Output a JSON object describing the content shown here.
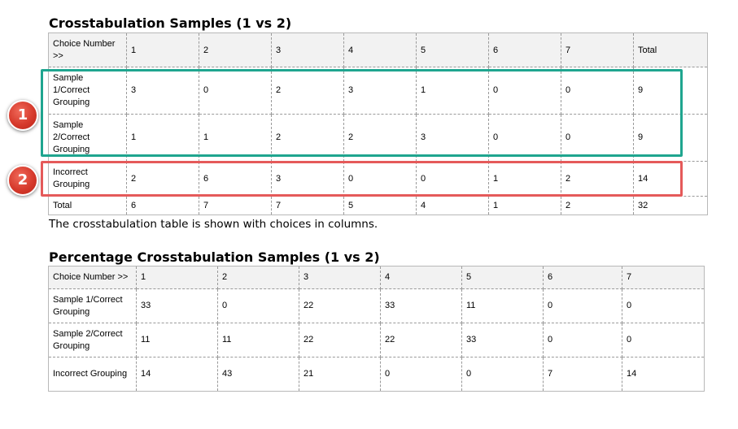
{
  "table1": {
    "title": "Crosstabulation Samples (1 vs 2)",
    "header": [
      "Choice Number >>",
      "1",
      "2",
      "3",
      "4",
      "5",
      "6",
      "7",
      "Total"
    ],
    "rows": [
      [
        "Sample 1/Correct Grouping",
        "3",
        "0",
        "2",
        "3",
        "1",
        "0",
        "0",
        "9"
      ],
      [
        "Sample 2/Correct Grouping",
        "1",
        "1",
        "2",
        "2",
        "3",
        "0",
        "0",
        "9"
      ],
      [
        "Incorrect Grouping",
        "2",
        "6",
        "3",
        "0",
        "0",
        "1",
        "2",
        "14"
      ],
      [
        "Total",
        "6",
        "7",
        "7",
        "5",
        "4",
        "1",
        "2",
        "32"
      ]
    ],
    "caption": "The crosstabulation table is shown with choices in columns."
  },
  "table2": {
    "title": "Percentage Crosstabulation Samples (1 vs 2)",
    "header": [
      "Choice Number >>",
      "1",
      "2",
      "3",
      "4",
      "5",
      "6",
      "7"
    ],
    "rows": [
      [
        "Sample 1/Correct Grouping",
        "33",
        "0",
        "22",
        "33",
        "11",
        "0",
        "0"
      ],
      [
        "Sample 2/Correct Grouping",
        "11",
        "11",
        "22",
        "22",
        "33",
        "0",
        "0"
      ],
      [
        "Incorrect Grouping",
        "14",
        "43",
        "21",
        "0",
        "0",
        "7",
        "14"
      ]
    ]
  },
  "annotations": {
    "badge1": "1",
    "badge2": "2",
    "green_box_color": "#1fa58f",
    "red_box_color": "#e55a5a",
    "badge_color": "#d63a2c"
  }
}
